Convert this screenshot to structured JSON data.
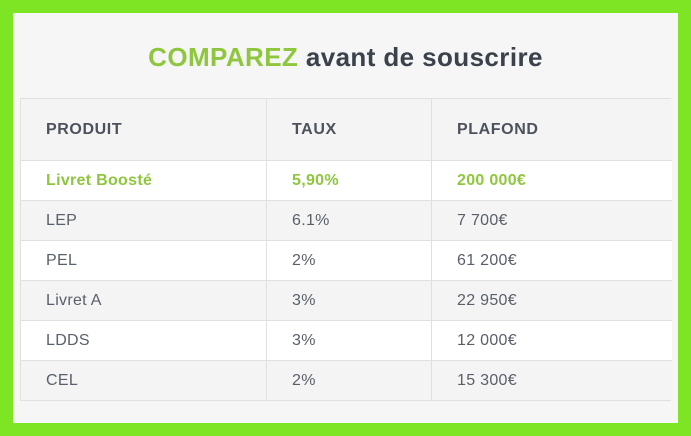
{
  "title": {
    "highlight": "COMPAREZ",
    "rest": "avant de souscrire"
  },
  "colors": {
    "frame_green": "#7de524",
    "accent_green": "#8ec73e",
    "title_dark": "#3b424b",
    "page_background": "#f6f6f6",
    "row_shade": "#f4f4f4",
    "border": "#e0e0e0"
  },
  "table": {
    "columns": [
      "PRODUIT",
      "TAUX",
      "PLAFOND"
    ],
    "rows": [
      {
        "produit": "Livret Boosté",
        "taux": "5,90%",
        "plafond": "200 000€",
        "highlighted": true
      },
      {
        "produit": "LEP",
        "taux": "6.1%",
        "plafond": "7 700€",
        "highlighted": false
      },
      {
        "produit": "PEL",
        "taux": "2%",
        "plafond": "61 200€",
        "highlighted": false
      },
      {
        "produit": "Livret A",
        "taux": "3%",
        "plafond": "22 950€",
        "highlighted": false
      },
      {
        "produit": "LDDS",
        "taux": "3%",
        "plafond": "12 000€",
        "highlighted": false
      },
      {
        "produit": "CEL",
        "taux": "2%",
        "plafond": "15 300€",
        "highlighted": false
      }
    ]
  }
}
